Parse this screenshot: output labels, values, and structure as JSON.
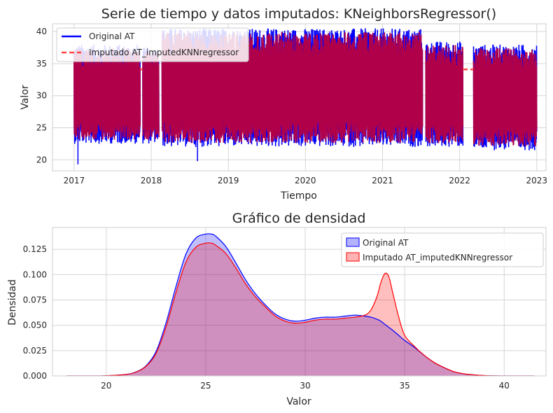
{
  "chart_data": [
    {
      "type": "line",
      "title": "Serie de tiempo y datos imputados: KNeighborsRegressor()",
      "xlabel": "Tiempo",
      "ylabel": "Valor",
      "xlim": [
        2016.72,
        2023.12
      ],
      "ylim": [
        18.3,
        41.2
      ],
      "x_ticks": [
        "2017",
        "2018",
        "2019",
        "2020",
        "2021",
        "2022",
        "2023"
      ],
      "y_ticks": [
        "20",
        "25",
        "30",
        "35",
        "40"
      ],
      "grid": true,
      "legend_position": "top-left",
      "series": [
        {
          "name": "Original AT",
          "color": "#0000ff",
          "segments": [
            {
              "x": [
                2017.0,
                2017.86
              ],
              "low": 22.5,
              "high": 38.0
            },
            {
              "x": [
                2017.89,
                2018.1
              ],
              "low": 22.5,
              "high": 37.5
            },
            {
              "x": [
                2018.14,
                2021.52
              ],
              "low": 22.0,
              "high": 40.5
            },
            {
              "x": [
                2021.56,
                2022.04
              ],
              "low": 22.0,
              "high": 38.5
            },
            {
              "x": [
                2022.18,
                2023.0
              ],
              "low": 21.5,
              "high": 38.0
            }
          ],
          "extremes": [
            {
              "x": 2017.05,
              "y": 19.3
            },
            {
              "x": 2018.6,
              "y": 19.8
            },
            {
              "x": 2019.7,
              "y": 40.0
            }
          ]
        },
        {
          "name": "Imputado AT_imputedKNNregressor",
          "color": "#ff4444",
          "imputed_level": 34.1,
          "imputed_spans": [
            [
              2022.04,
              2022.18
            ],
            [
              2017.86,
              2017.89
            ]
          ]
        }
      ]
    },
    {
      "type": "area",
      "title": "Gráfico de densidad",
      "xlabel": "Valor",
      "ylabel": "Densidad",
      "xlim": [
        17.3,
        42.1
      ],
      "ylim": [
        0.0,
        0.1465
      ],
      "x_ticks": [
        20,
        25,
        30,
        35,
        40
      ],
      "y_ticks": [
        "0.000",
        "0.025",
        "0.050",
        "0.075",
        "0.100",
        "0.125"
      ],
      "grid": true,
      "legend_position": "top-right",
      "x": [
        18,
        19,
        20,
        21,
        21.5,
        22,
        22.5,
        23,
        23.5,
        24,
        24.5,
        25,
        25.3,
        25.5,
        26,
        26.5,
        27,
        27.5,
        28,
        28.5,
        29,
        29.5,
        30,
        30.5,
        31,
        31.5,
        32,
        32.5,
        33,
        33.3,
        33.6,
        33.8,
        34.0,
        34.2,
        34.4,
        34.7,
        35,
        35.5,
        36,
        36.5,
        37,
        37.5,
        38,
        38.5,
        39,
        39.5,
        40,
        41.5
      ],
      "series": [
        {
          "name": "Original AT",
          "color": "#0000ff",
          "fill": "#b3b3ff",
          "values": [
            0.0,
            0.0,
            0.0002,
            0.0015,
            0.004,
            0.01,
            0.024,
            0.052,
            0.088,
            0.12,
            0.136,
            0.14,
            0.14,
            0.138,
            0.128,
            0.112,
            0.095,
            0.081,
            0.07,
            0.061,
            0.056,
            0.054,
            0.055,
            0.057,
            0.058,
            0.058,
            0.059,
            0.06,
            0.059,
            0.058,
            0.056,
            0.054,
            0.051,
            0.048,
            0.045,
            0.04,
            0.035,
            0.028,
            0.02,
            0.013,
            0.008,
            0.004,
            0.002,
            0.001,
            0.0004,
            0.0001,
            0.0,
            0.0
          ]
        },
        {
          "name": "Imputado AT_imputedKNNregressor",
          "color": "#ff0000",
          "fill": "#ffb3b3",
          "values": [
            0.0,
            0.0,
            0.0002,
            0.0014,
            0.0038,
            0.0095,
            0.022,
            0.048,
            0.082,
            0.112,
            0.127,
            0.131,
            0.131,
            0.129,
            0.121,
            0.107,
            0.091,
            0.078,
            0.068,
            0.059,
            0.054,
            0.052,
            0.053,
            0.055,
            0.056,
            0.056,
            0.057,
            0.058,
            0.06,
            0.065,
            0.078,
            0.092,
            0.101,
            0.098,
            0.082,
            0.058,
            0.04,
            0.029,
            0.02,
            0.013,
            0.008,
            0.004,
            0.002,
            0.001,
            0.0004,
            0.0001,
            0.0,
            0.0
          ]
        }
      ]
    }
  ]
}
